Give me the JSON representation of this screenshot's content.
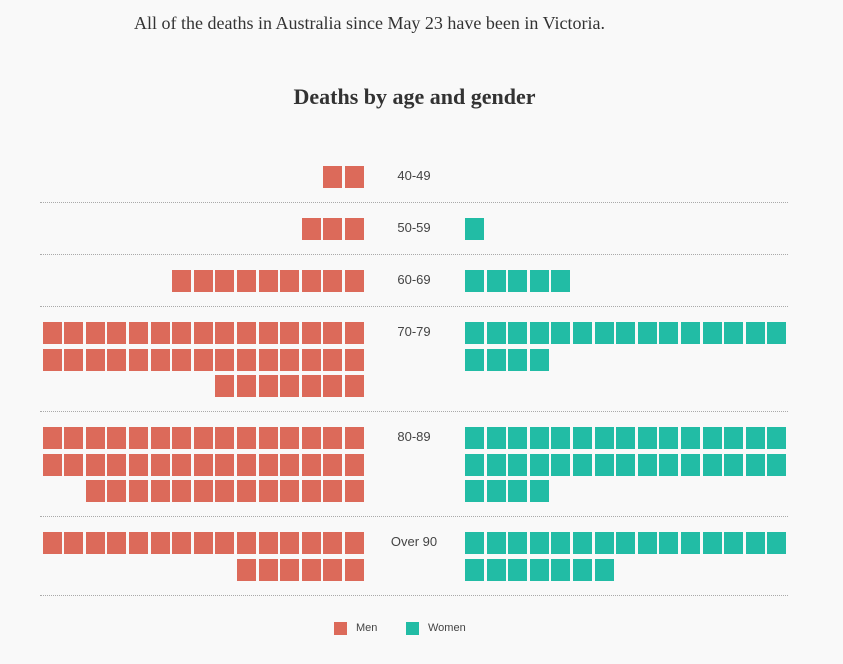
{
  "intro_text": "All of the deaths in Australia since May 23 have been in Victoria.",
  "chart_data": {
    "type": "waffle",
    "title": "Deaths by age and gender",
    "categories": [
      "40-49",
      "50-59",
      "60-69",
      "70-79",
      "80-89",
      "Over 90"
    ],
    "series": [
      {
        "name": "Men",
        "color": "#dc6a5a",
        "values": [
          2,
          3,
          9,
          37,
          43,
          21
        ]
      },
      {
        "name": "Women",
        "color": "#22bca5",
        "values": [
          0,
          1,
          5,
          19,
          34,
          22
        ]
      }
    ],
    "units_per_row": 15,
    "legend_position": "bottom"
  }
}
